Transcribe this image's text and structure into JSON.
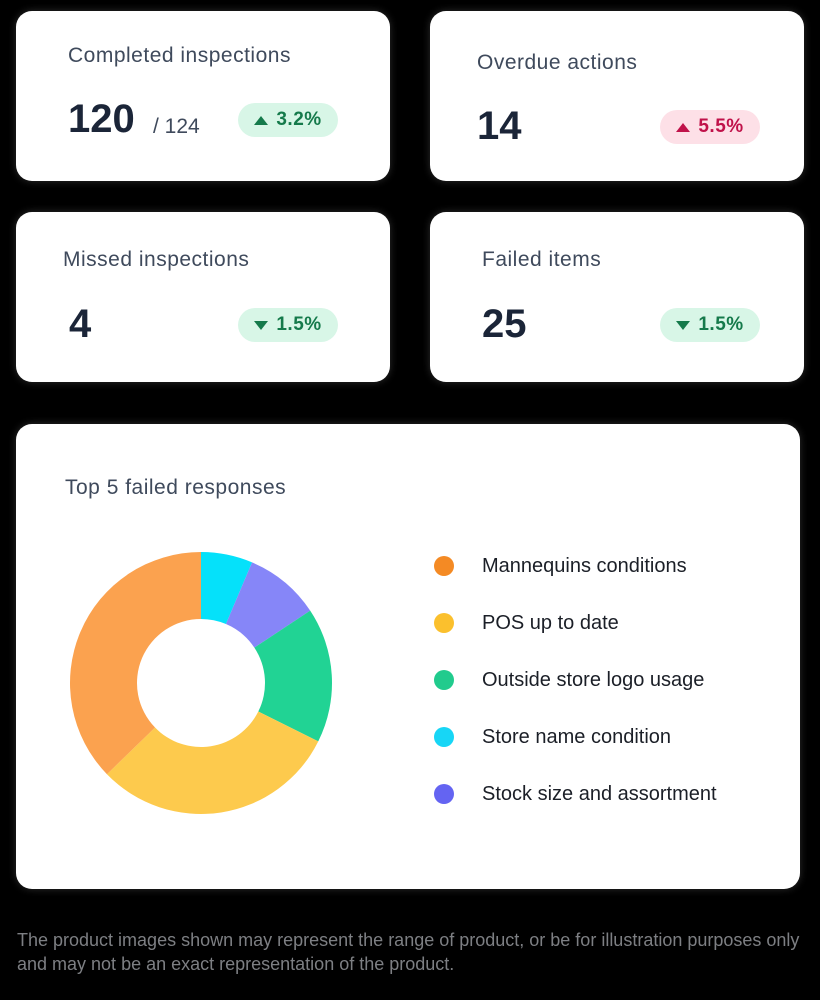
{
  "kpis": [
    {
      "title": "Completed inspections",
      "value": "120",
      "total": "/ 124",
      "change": "3.2%",
      "direction": "up",
      "status": "good"
    },
    {
      "title": "Overdue actions",
      "value": "14",
      "change": "5.5%",
      "direction": "up",
      "status": "bad"
    },
    {
      "title": "Missed inspections",
      "value": "4",
      "change": "1.5%",
      "direction": "down",
      "status": "good"
    },
    {
      "title": "Failed items",
      "value": "25",
      "change": "1.5%",
      "direction": "down",
      "status": "good"
    }
  ],
  "colors": {
    "good_badge_bg": "#d8f6e7",
    "good_badge_text": "#157a4b",
    "bad_badge_bg": "#fde0e7",
    "bad_badge_text": "#c0124a"
  },
  "chart_title": "Top 5 failed responses",
  "chart_data": {
    "type": "pie",
    "title": "Top 5 failed responses",
    "donut": true,
    "categories": [
      "Mannequins conditions",
      "POS up to date",
      "Outside store logo usage",
      "Store name condition",
      "Stock size and assortment"
    ],
    "values": [
      38,
      31,
      17,
      6.5,
      9.5
    ],
    "colors": [
      "#fba24f",
      "#fdca4d",
      "#21d394",
      "#05e1fa",
      "#8686f8"
    ],
    "legend_colors": [
      "#f48a24",
      "#fbc02d",
      "#21cb8d",
      "#17d6f6",
      "#6464f2"
    ],
    "legend_position": "right"
  },
  "footer": "The product images shown may represent the range of product, or be for illustration purposes only and may not be an exact representation of the product."
}
